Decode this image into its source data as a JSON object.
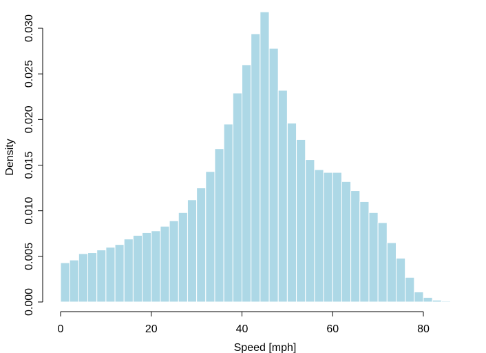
{
  "chart_data": {
    "type": "bar",
    "title": "",
    "xlabel": "Speed [mph]",
    "ylabel": "Density",
    "bar_color": "#add8e6",
    "bar_edge_color": "#ffffff",
    "xlim": [
      0,
      85
    ],
    "ylim": [
      0,
      0.03
    ],
    "grid": false,
    "legend": "none",
    "bin_width": 2,
    "bin_start": 0,
    "x_ticks": [
      "0",
      "20",
      "40",
      "60",
      "80"
    ],
    "x_tick_values": [
      0,
      20,
      40,
      60,
      80
    ],
    "y_ticks": [
      "0.000",
      "0.005",
      "0.010",
      "0.015",
      "0.020",
      "0.025",
      "0.030"
    ],
    "y_tick_values": [
      0.0,
      0.005,
      0.01,
      0.015,
      0.02,
      0.025,
      0.03
    ],
    "values": [
      0.0043,
      0.0046,
      0.0053,
      0.0054,
      0.0057,
      0.006,
      0.0063,
      0.0069,
      0.0073,
      0.0076,
      0.0078,
      0.0083,
      0.0089,
      0.0098,
      0.0112,
      0.0125,
      0.0143,
      0.0168,
      0.0195,
      0.0229,
      0.026,
      0.0294,
      0.0318,
      0.0278,
      0.0232,
      0.0196,
      0.0178,
      0.0156,
      0.0145,
      0.0142,
      0.0142,
      0.0132,
      0.0122,
      0.011,
      0.0098,
      0.0087,
      0.0065,
      0.0048,
      0.0027,
      0.0011,
      0.0005,
      0.0002,
      0.0001
    ]
  }
}
